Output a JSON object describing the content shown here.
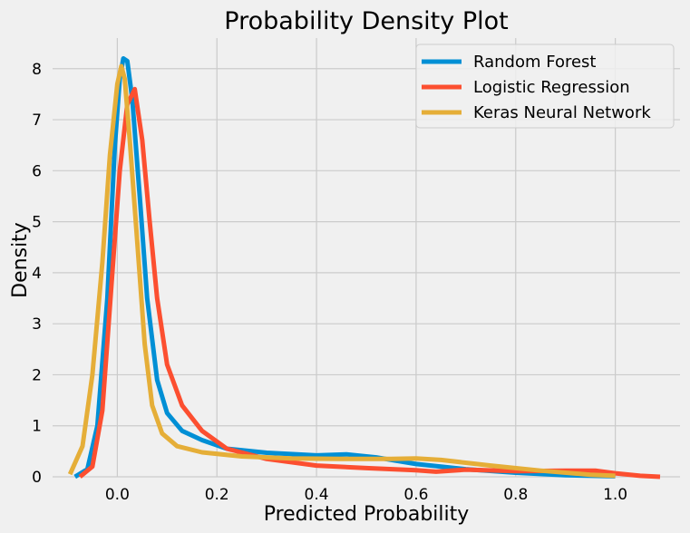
{
  "chart_data": {
    "type": "line",
    "title": "Probability Density Plot",
    "xlabel": "Predicted Probability",
    "ylabel": "Density",
    "xlim": [
      -0.13,
      1.13
    ],
    "ylim": [
      0,
      8.6
    ],
    "xticks": [
      0.0,
      0.2,
      0.4,
      0.6,
      0.8,
      1.0
    ],
    "xtick_labels": [
      "0.0",
      "0.2",
      "0.4",
      "0.6",
      "0.8",
      "1.0"
    ],
    "yticks": [
      0,
      1,
      2,
      3,
      4,
      5,
      6,
      7,
      8
    ],
    "ytick_labels": [
      "0",
      "1",
      "2",
      "3",
      "4",
      "5",
      "6",
      "7",
      "8"
    ],
    "grid": true,
    "legend_position": "top-right",
    "series": [
      {
        "name": "Random Forest",
        "color": "#008fd5",
        "points": [
          [
            -0.085,
            0.0
          ],
          [
            -0.06,
            0.15
          ],
          [
            -0.04,
            1.0
          ],
          [
            -0.02,
            3.5
          ],
          [
            -0.005,
            6.5
          ],
          [
            0.005,
            7.8
          ],
          [
            0.012,
            8.2
          ],
          [
            0.02,
            8.15
          ],
          [
            0.03,
            7.4
          ],
          [
            0.045,
            5.5
          ],
          [
            0.06,
            3.5
          ],
          [
            0.08,
            1.9
          ],
          [
            0.1,
            1.25
          ],
          [
            0.13,
            0.9
          ],
          [
            0.17,
            0.72
          ],
          [
            0.22,
            0.55
          ],
          [
            0.3,
            0.47
          ],
          [
            0.4,
            0.42
          ],
          [
            0.46,
            0.44
          ],
          [
            0.52,
            0.38
          ],
          [
            0.6,
            0.25
          ],
          [
            0.7,
            0.15
          ],
          [
            0.8,
            0.08
          ],
          [
            0.9,
            0.03
          ],
          [
            1.0,
            0.01
          ]
        ]
      },
      {
        "name": "Logistic Regression",
        "color": "#fc4f30",
        "points": [
          [
            -0.075,
            0.0
          ],
          [
            -0.05,
            0.2
          ],
          [
            -0.03,
            1.3
          ],
          [
            -0.01,
            4.0
          ],
          [
            0.005,
            6.0
          ],
          [
            0.02,
            7.3
          ],
          [
            0.035,
            7.6
          ],
          [
            0.05,
            6.6
          ],
          [
            0.065,
            5.0
          ],
          [
            0.08,
            3.5
          ],
          [
            0.1,
            2.2
          ],
          [
            0.13,
            1.4
          ],
          [
            0.17,
            0.9
          ],
          [
            0.22,
            0.55
          ],
          [
            0.3,
            0.35
          ],
          [
            0.4,
            0.22
          ],
          [
            0.5,
            0.17
          ],
          [
            0.6,
            0.13
          ],
          [
            0.64,
            0.1
          ],
          [
            0.7,
            0.14
          ],
          [
            0.8,
            0.11
          ],
          [
            0.9,
            0.12
          ],
          [
            0.96,
            0.12
          ],
          [
            1.0,
            0.07
          ],
          [
            1.05,
            0.02
          ],
          [
            1.09,
            0.0
          ]
        ]
      },
      {
        "name": "Keras Neural Network",
        "color": "#e5ae38",
        "points": [
          [
            -0.095,
            0.05
          ],
          [
            -0.07,
            0.6
          ],
          [
            -0.05,
            2.0
          ],
          [
            -0.03,
            4.2
          ],
          [
            -0.015,
            6.3
          ],
          [
            0.0,
            7.7
          ],
          [
            0.008,
            8.05
          ],
          [
            0.015,
            7.8
          ],
          [
            0.025,
            6.6
          ],
          [
            0.04,
            4.6
          ],
          [
            0.055,
            2.6
          ],
          [
            0.07,
            1.4
          ],
          [
            0.09,
            0.85
          ],
          [
            0.12,
            0.6
          ],
          [
            0.17,
            0.48
          ],
          [
            0.25,
            0.4
          ],
          [
            0.35,
            0.36
          ],
          [
            0.45,
            0.35
          ],
          [
            0.55,
            0.35
          ],
          [
            0.6,
            0.36
          ],
          [
            0.65,
            0.33
          ],
          [
            0.75,
            0.22
          ],
          [
            0.85,
            0.12
          ],
          [
            0.95,
            0.04
          ],
          [
            1.0,
            0.02
          ]
        ]
      }
    ]
  }
}
